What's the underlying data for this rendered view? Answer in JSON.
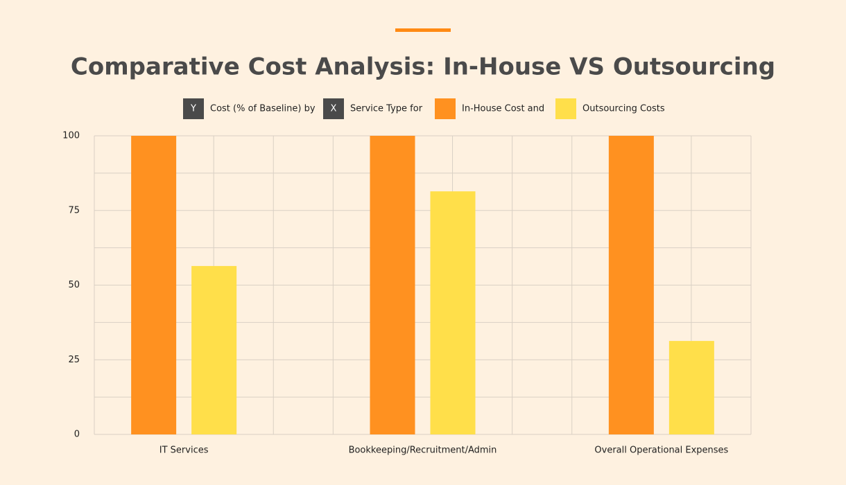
{
  "chart_data": {
    "type": "bar",
    "title": "Comparative Cost Analysis: In-House VS Outsourcing",
    "y_axis_badge": "Y",
    "y_axis_label": "Cost (% of Baseline) by",
    "x_axis_badge": "X",
    "x_axis_label": "Service Type for",
    "categories": [
      "IT Services",
      "Bookkeeping/Recruitment/Admin",
      "Overall Operational Expenses"
    ],
    "series": [
      {
        "name": "In-House Cost and",
        "color": "#ff9120",
        "values": [
          100,
          100,
          100
        ]
      },
      {
        "name": "Outsourcing Costs",
        "color": "#ffdf4a",
        "values": [
          56.4,
          81.4,
          31.3
        ]
      }
    ],
    "ylim": [
      0,
      100
    ],
    "yticks": [
      0,
      25,
      50,
      75,
      100
    ],
    "grid_yticks": [
      0,
      12.5,
      25,
      37.5,
      50,
      62.5,
      75,
      87.5,
      100
    ],
    "grid": true
  }
}
